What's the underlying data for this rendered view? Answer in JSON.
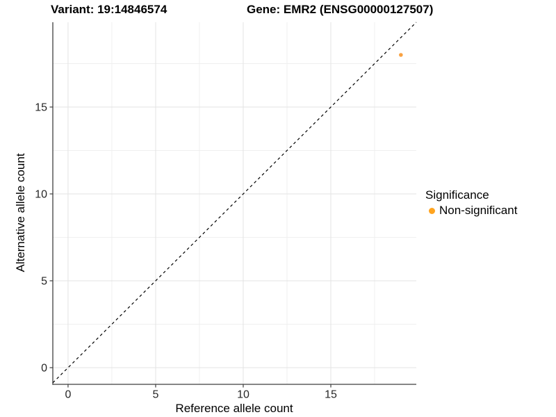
{
  "figure": {
    "title_left": "Variant: 19:14846574",
    "title_right": "Gene: EMR2 (ENSG00000127507)"
  },
  "chart_data": {
    "type": "scatter",
    "xlabel": "Reference allele count",
    "ylabel": "Alternative allele count",
    "xlim": [
      -0.87,
      19.88
    ],
    "ylim": [
      -0.96,
      19.88
    ],
    "xticks": [
      0,
      5,
      10,
      15
    ],
    "yticks": [
      0,
      5,
      10,
      15
    ],
    "xticks_minor": [
      2.5,
      7.5,
      12.5,
      17.5
    ],
    "yticks_minor": [
      2.5,
      7.5,
      12.5,
      17.5
    ],
    "grid": "major+minor light gray on white, axis lines left and bottom only",
    "points": [
      {
        "x": 19,
        "y": 18,
        "series": "Non-significant",
        "color": "#F9A242"
      }
    ],
    "identity_line": {
      "label": "y = x",
      "style": "dashed",
      "color": "#000000",
      "from": -0.87,
      "to": 19.88
    },
    "legend": {
      "position": "right",
      "title": "Significance",
      "items": [
        {
          "label": "Non-significant",
          "color": "#FFA41F",
          "marker": "circle"
        }
      ]
    },
    "colors": {
      "grid_major": "#e3e3e3",
      "grid_minor": "#efefef",
      "axis_line": "#3f3f3f",
      "tick_text": "#262626",
      "significant_accent": "#FFA41F"
    }
  }
}
